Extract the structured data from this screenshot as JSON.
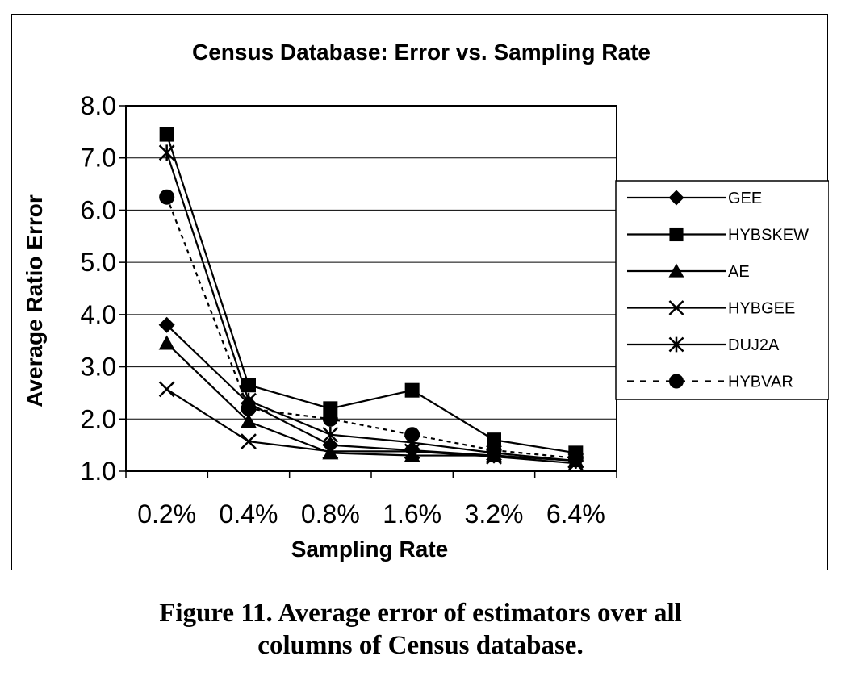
{
  "caption": {
    "line1": "Figure 11. Average error of estimators over all",
    "line2": "columns of Census database."
  },
  "chart_data": {
    "type": "line",
    "title": "Census Database: Error vs. Sampling Rate",
    "xlabel": "Sampling Rate",
    "ylabel": "Average Ratio Error",
    "categories": [
      "0.2%",
      "0.4%",
      "0.8%",
      "1.6%",
      "3.2%",
      "6.4%"
    ],
    "ylim": [
      1.0,
      8.0
    ],
    "yticks": [
      "1.0",
      "2.0",
      "3.0",
      "4.0",
      "5.0",
      "6.0",
      "7.0",
      "8.0"
    ],
    "grid": "horizontal",
    "legend_position": "right",
    "series": [
      {
        "name": "GEE",
        "marker": "diamond",
        "style": "solid",
        "values": [
          3.8,
          2.3,
          1.5,
          1.4,
          1.3,
          1.2
        ]
      },
      {
        "name": "HYBSKEW",
        "marker": "square",
        "style": "solid",
        "values": [
          7.45,
          2.65,
          2.2,
          2.55,
          1.6,
          1.35
        ]
      },
      {
        "name": "AE",
        "marker": "triangle",
        "style": "solid",
        "values": [
          3.45,
          1.95,
          1.35,
          1.3,
          1.3,
          1.2
        ]
      },
      {
        "name": "HYBGEE",
        "marker": "x",
        "style": "solid",
        "values": [
          2.57,
          1.57,
          1.38,
          1.38,
          1.28,
          1.15
        ]
      },
      {
        "name": "DUJ2A",
        "marker": "asterisk",
        "style": "solid",
        "values": [
          7.1,
          2.35,
          1.7,
          1.55,
          1.35,
          1.2
        ]
      },
      {
        "name": "HYBVAR",
        "marker": "circle",
        "style": "dashed",
        "values": [
          6.25,
          2.2,
          2.0,
          1.7,
          1.4,
          1.25
        ]
      }
    ],
    "colors": {
      "line": "#000000",
      "grid": "#000000",
      "plot_background": "#ffffff"
    }
  }
}
